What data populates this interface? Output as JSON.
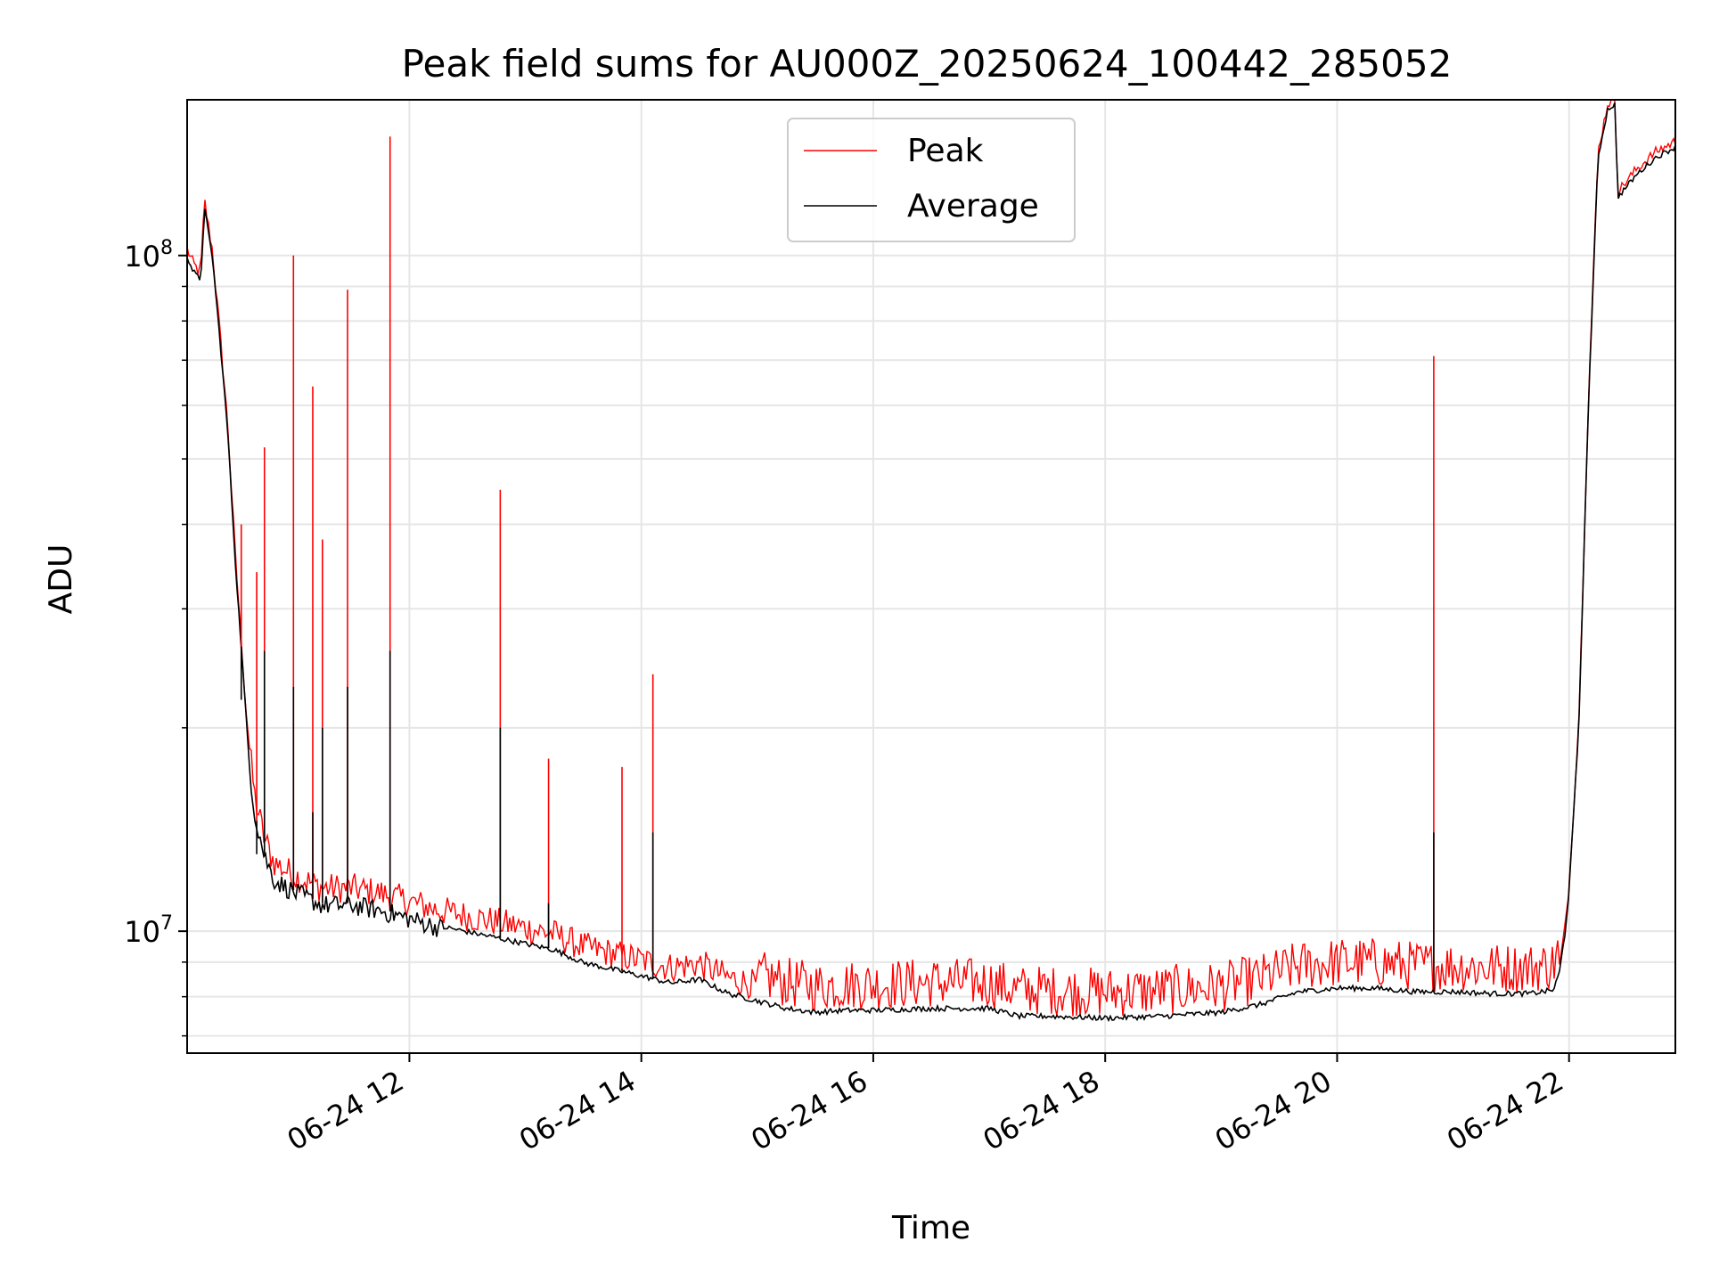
{
  "chart_data": {
    "type": "line",
    "title": "Peak field sums for AU000Z_20250624_100442_285052",
    "xlabel": "Time",
    "ylabel": "ADU",
    "yscale": "log",
    "xlim": [
      "2025-06-24 10:05",
      "2025-06-24 22:55"
    ],
    "ylim": [
      6600000,
      170000000
    ],
    "x_ticks": [
      {
        "x": "2025-06-24 12:00",
        "label": "06-24 12"
      },
      {
        "x": "2025-06-24 14:00",
        "label": "06-24 14"
      },
      {
        "x": "2025-06-24 16:00",
        "label": "06-24 16"
      },
      {
        "x": "2025-06-24 18:00",
        "label": "06-24 18"
      },
      {
        "x": "2025-06-24 20:00",
        "label": "06-24 20"
      },
      {
        "x": "2025-06-24 22:00",
        "label": "06-24 22"
      }
    ],
    "y_ticks": [
      {
        "y": 10000000,
        "base": "10",
        "exp": "7"
      },
      {
        "y": 100000000,
        "base": "10",
        "exp": "8"
      }
    ],
    "grid": true,
    "legend_position": "top-center",
    "series": [
      {
        "name": "Average",
        "color": "#000000",
        "points": [
          [
            "2025-06-24 10:05",
            100000000
          ],
          [
            "2025-06-24 10:08",
            95000000
          ],
          [
            "2025-06-24 10:12",
            92000000
          ],
          [
            "2025-06-24 10:14",
            118000000
          ],
          [
            "2025-06-24 10:16",
            108000000
          ],
          [
            "2025-06-24 10:18",
            100000000
          ],
          [
            "2025-06-24 10:22",
            75000000
          ],
          [
            "2025-06-24 10:26",
            55000000
          ],
          [
            "2025-06-24 10:30",
            35000000
          ],
          [
            "2025-06-24 10:34",
            24000000
          ],
          [
            "2025-06-24 10:37",
            18000000
          ],
          [
            "2025-06-24 10:40",
            15000000
          ],
          [
            "2025-06-24 10:45",
            13000000
          ],
          [
            "2025-06-24 10:50",
            12000000
          ],
          [
            "2025-06-24 11:00",
            11500000
          ],
          [
            "2025-06-24 11:15",
            11000000
          ],
          [
            "2025-06-24 11:30",
            11000000
          ],
          [
            "2025-06-24 11:45",
            10800000
          ],
          [
            "2025-06-24 12:00",
            10500000
          ],
          [
            "2025-06-24 12:15",
            10200000
          ],
          [
            "2025-06-24 12:30",
            10000000
          ],
          [
            "2025-06-24 12:45",
            9800000
          ],
          [
            "2025-06-24 13:00",
            9600000
          ],
          [
            "2025-06-24 13:15",
            9400000
          ],
          [
            "2025-06-24 13:30",
            9000000
          ],
          [
            "2025-06-24 13:45",
            8800000
          ],
          [
            "2025-06-24 14:00",
            8600000
          ],
          [
            "2025-06-24 14:15",
            8400000
          ],
          [
            "2025-06-24 14:30",
            8500000
          ],
          [
            "2025-06-24 14:45",
            8100000
          ],
          [
            "2025-06-24 15:00",
            7900000
          ],
          [
            "2025-06-24 15:15",
            7700000
          ],
          [
            "2025-06-24 15:30",
            7600000
          ],
          [
            "2025-06-24 15:45",
            7650000
          ],
          [
            "2025-06-24 16:00",
            7650000
          ],
          [
            "2025-06-24 16:30",
            7700000
          ],
          [
            "2025-06-24 17:00",
            7700000
          ],
          [
            "2025-06-24 17:15",
            7500000
          ],
          [
            "2025-06-24 17:30",
            7500000
          ],
          [
            "2025-06-24 18:00",
            7450000
          ],
          [
            "2025-06-24 18:30",
            7500000
          ],
          [
            "2025-06-24 19:00",
            7600000
          ],
          [
            "2025-06-24 19:20",
            7800000
          ],
          [
            "2025-06-24 19:40",
            8150000
          ],
          [
            "2025-06-24 20:00",
            8250000
          ],
          [
            "2025-06-24 20:20",
            8250000
          ],
          [
            "2025-06-24 20:40",
            8150000
          ],
          [
            "2025-06-24 21:00",
            8150000
          ],
          [
            "2025-06-24 21:20",
            8100000
          ],
          [
            "2025-06-24 21:40",
            8100000
          ],
          [
            "2025-06-24 21:52",
            8200000
          ],
          [
            "2025-06-24 21:55",
            8700000
          ],
          [
            "2025-06-24 21:58",
            10000000
          ],
          [
            "2025-06-24 22:00",
            11500000
          ],
          [
            "2025-06-24 22:05",
            20000000
          ],
          [
            "2025-06-24 22:10",
            60000000
          ],
          [
            "2025-06-24 22:15",
            140000000
          ],
          [
            "2025-06-24 22:20",
            165000000
          ],
          [
            "2025-06-24 22:24",
            168000000
          ],
          [
            "2025-06-24 22:25",
            122000000
          ],
          [
            "2025-06-24 22:35",
            132000000
          ],
          [
            "2025-06-24 22:45",
            140000000
          ],
          [
            "2025-06-24 22:55",
            145000000
          ]
        ]
      },
      {
        "name": "Peak",
        "color": "#ff0000",
        "spikes": [
          {
            "x": "2025-06-24 10:33",
            "peak": 40000000,
            "avg": 22000000
          },
          {
            "x": "2025-06-24 10:41",
            "peak": 34000000,
            "avg": 13000000
          },
          {
            "x": "2025-06-24 10:45",
            "peak": 52000000,
            "avg": 26000000
          },
          {
            "x": "2025-06-24 11:00",
            "peak": 100000000,
            "avg": 23000000
          },
          {
            "x": "2025-06-24 11:10",
            "peak": 64000000,
            "avg": 15000000
          },
          {
            "x": "2025-06-24 11:15",
            "peak": 38000000,
            "avg": 20000000
          },
          {
            "x": "2025-06-24 11:28",
            "peak": 89000000,
            "avg": 23000000
          },
          {
            "x": "2025-06-24 11:50",
            "peak": 150000000,
            "avg": 26000000
          },
          {
            "x": "2025-06-24 12:47",
            "peak": 45000000,
            "avg": 20000000
          },
          {
            "x": "2025-06-24 13:12",
            "peak": 18000000,
            "avg": 11000000
          },
          {
            "x": "2025-06-24 13:50",
            "peak": 17500000,
            "avg": 8800000
          },
          {
            "x": "2025-06-24 14:06",
            "peak": 24000000,
            "avg": 14000000
          },
          {
            "x": "2025-06-24 20:50",
            "peak": 71000000,
            "avg": 14000000
          }
        ]
      }
    ]
  }
}
